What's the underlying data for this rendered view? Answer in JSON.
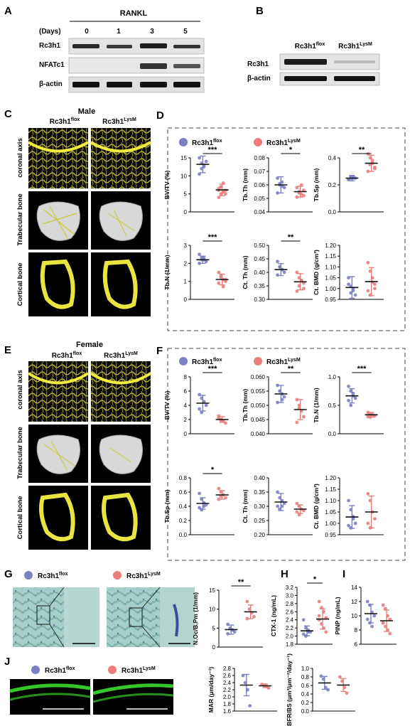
{
  "colors": {
    "flox": "#7b80c4",
    "lysm": "#e97d7d",
    "bone": "#e9e540",
    "micro": "#101010",
    "stain": "#8fbcb6",
    "green": "#3cdc2f"
  },
  "panelA": {
    "letter": "A",
    "treatment": "RANKL",
    "days_label": "(Days)",
    "days": [
      "0",
      "1",
      "3",
      "5"
    ],
    "rows": [
      "Rc3h1",
      "NFATc1",
      "β-actin"
    ]
  },
  "panelB": {
    "letter": "B",
    "lanes": [
      "Rc3h1",
      "Rc3h1"
    ],
    "lane_sup": [
      "flox",
      "LysM"
    ],
    "rows": [
      "Rc3h1",
      "β-actin"
    ]
  },
  "panelC": {
    "letter": "C",
    "sex": "Male",
    "cols": [
      "Rc3h1",
      "Rc3h1"
    ],
    "col_sup": [
      "flox",
      "LysM"
    ],
    "rows": [
      "coronal axis",
      "Trabecular bone",
      "Cortical bone"
    ]
  },
  "panelE": {
    "letter": "E",
    "sex": "Female",
    "cols": [
      "Rc3h1",
      "Rc3h1"
    ],
    "col_sup": [
      "flox",
      "LysM"
    ],
    "rows": [
      "coronal axis",
      "Trabecular bone",
      "Cortical bone"
    ]
  },
  "panelD": {
    "letter": "D",
    "legend": [
      "Rc3h1",
      "Rc3h1"
    ],
    "legend_sup": [
      "flox",
      "LysM"
    ]
  },
  "panelF": {
    "letter": "F",
    "legend": [
      "Rc3h1",
      "Rc3h1"
    ],
    "legend_sup": [
      "flox",
      "LysM"
    ]
  },
  "panelG": {
    "letter": "G",
    "legend": [
      "Rc3h1",
      "Rc3h1"
    ],
    "legend_sup": [
      "flox",
      "LysM"
    ]
  },
  "panelH": {
    "letter": "H"
  },
  "panelI": {
    "letter": "I"
  },
  "panelJ": {
    "letter": "J",
    "legend": [
      "Rc3h1",
      "Rc3h1"
    ],
    "legend_sup": [
      "flox",
      "LysM"
    ]
  },
  "chart_data": [
    {
      "id": "D1",
      "type": "scatter",
      "ylabel": "BV/TV (%)",
      "ylim": [
        0,
        15
      ],
      "yticks": [
        "0",
        "5",
        "10",
        "15"
      ],
      "groups": [
        "Rc3h1 flox",
        "Rc3h1 LysM"
      ],
      "mean": [
        13.2,
        6.1
      ],
      "sd": [
        2.3,
        1.6
      ],
      "points": [
        [
          10.5,
          12,
          13,
          14,
          15,
          13.5,
          12.5
        ],
        [
          4,
          5,
          5.5,
          6,
          6.5,
          7,
          8,
          5,
          6
        ]
      ],
      "significance": "***"
    },
    {
      "id": "D2",
      "type": "scatter",
      "ylabel": "Tb.Th (mm)",
      "ylim": [
        0.04,
        0.08
      ],
      "yticks": [
        "0.04",
        "0.05",
        "0.06",
        "0.07",
        "0.08"
      ],
      "groups": [
        "Rc3h1 flox",
        "Rc3h1 LysM"
      ],
      "mean": [
        0.06,
        0.055
      ],
      "sd": [
        0.006,
        0.004
      ],
      "points": [
        [
          0.065,
          0.061,
          0.059,
          0.058,
          0.054,
          0.06,
          0.062
        ],
        [
          0.058,
          0.055,
          0.053,
          0.056,
          0.051,
          0.054,
          0.06,
          0.052
        ]
      ],
      "significance": "*"
    },
    {
      "id": "D3",
      "type": "scatter",
      "ylabel": "Tb.Sp (mm)",
      "ylim": [
        0,
        0.4
      ],
      "yticks": [
        "0.0",
        "0.2",
        "0.4"
      ],
      "groups": [
        "Rc3h1 flox",
        "Rc3h1 LysM"
      ],
      "mean": [
        0.25,
        0.36
      ],
      "sd": [
        0.02,
        0.06
      ],
      "points": [
        [
          0.24,
          0.25,
          0.26,
          0.25,
          0.24,
          0.26,
          0.25
        ],
        [
          0.43,
          0.4,
          0.36,
          0.33,
          0.3,
          0.35,
          0.38,
          0.32
        ]
      ],
      "significance": "**"
    },
    {
      "id": "D4",
      "type": "scatter",
      "ylabel": "Tb.N (1/mm)",
      "ylim": [
        0,
        3
      ],
      "yticks": [
        "0",
        "1",
        "2",
        "3"
      ],
      "groups": [
        "Rc3h1 flox",
        "Rc3h1 LysM"
      ],
      "mean": [
        2.2,
        1.1
      ],
      "sd": [
        0.2,
        0.3
      ],
      "points": [
        [
          2.5,
          2.3,
          2.2,
          2.1,
          2,
          2.2,
          2.3
        ],
        [
          1.5,
          1.3,
          1.1,
          1,
          0.9,
          1.2,
          0.7,
          1.1
        ]
      ],
      "significance": "***"
    },
    {
      "id": "D5",
      "type": "scatter",
      "ylabel": "Ct. Th (mm)",
      "ylim": [
        0.3,
        0.5
      ],
      "yticks": [
        "0.30",
        "0.35",
        "0.40",
        "0.45",
        "0.50"
      ],
      "groups": [
        "Rc3h1 flox",
        "Rc3h1 LysM"
      ],
      "mean": [
        0.41,
        0.365
      ],
      "sd": [
        0.022,
        0.03
      ],
      "points": [
        [
          0.44,
          0.42,
          0.41,
          0.4,
          0.39,
          0.42,
          0.41
        ],
        [
          0.4,
          0.38,
          0.37,
          0.36,
          0.33,
          0.35,
          0.37,
          0.34
        ]
      ],
      "significance": "**"
    },
    {
      "id": "D6",
      "type": "scatter",
      "ylabel": "Ct. BMD (g/cm³)",
      "ylim": [
        0.95,
        1.2
      ],
      "yticks": [
        "0.95",
        "1.00",
        "1.05",
        "1.10",
        "1.15",
        "1.20"
      ],
      "groups": [
        "Rc3h1 flox",
        "Rc3h1 LysM"
      ],
      "mean": [
        1.005,
        1.032
      ],
      "sd": [
        0.05,
        0.065
      ],
      "points": [
        [
          1.05,
          1.01,
          0.99,
          0.97,
          1.02,
          0.98,
          1
        ],
        [
          1.12,
          1.08,
          1.05,
          1.02,
          0.99,
          0.97,
          1.03,
          1
        ]
      ],
      "significance": ""
    },
    {
      "id": "F1",
      "type": "scatter",
      "ylabel": "BV/TV (%)",
      "ylim": [
        0,
        8
      ],
      "yticks": [
        "0",
        "2",
        "4",
        "6",
        "8"
      ],
      "groups": [
        "Rc3h1 flox",
        "Rc3h1 LysM"
      ],
      "mean": [
        4.3,
        2
      ],
      "sd": [
        1.1,
        0.4
      ],
      "points": [
        [
          5.5,
          5,
          4.5,
          4,
          3.5,
          3,
          4.5
        ],
        [
          2.5,
          2,
          1.8,
          1.5,
          2.2,
          1.9
        ]
      ],
      "significance": "***"
    },
    {
      "id": "F2",
      "type": "scatter",
      "ylabel": "Tb.Th (mm)",
      "ylim": [
        0.04,
        0.06
      ],
      "yticks": [
        "0.040",
        "0.045",
        "0.050",
        "0.055",
        "0.060"
      ],
      "groups": [
        "Rc3h1 flox",
        "Rc3h1 LysM"
      ],
      "mean": [
        0.054,
        0.0485
      ],
      "sd": [
        0.003,
        0.0035
      ],
      "points": [
        [
          0.057,
          0.055,
          0.054,
          0.053,
          0.051,
          0.055,
          0.052
        ],
        [
          0.052,
          0.05,
          0.048,
          0.046,
          0.044,
          0.049
        ]
      ],
      "significance": "**"
    },
    {
      "id": "F3",
      "type": "scatter",
      "ylabel": "Tb.N (1/mm)",
      "ylim": [
        0,
        1.2
      ],
      "yticks": [
        "0.0",
        "0.5",
        "1.0"
      ],
      "groups": [
        "Rc3h1 flox",
        "Rc3h1 LysM"
      ],
      "mean": [
        0.8,
        0.4
      ],
      "sd": [
        0.15,
        0.05
      ],
      "points": [
        [
          1,
          0.9,
          0.85,
          0.75,
          0.7,
          0.6,
          0.8
        ],
        [
          0.45,
          0.42,
          0.4,
          0.38,
          0.36,
          0.35
        ]
      ],
      "significance": "***"
    },
    {
      "id": "F4",
      "type": "scatter",
      "ylabel": "Tb.Sp (mm)",
      "ylim": [
        0,
        0.8
      ],
      "yticks": [
        "0.0",
        "0.2",
        "0.4",
        "0.6",
        "0.8"
      ],
      "groups": [
        "Rc3h1 flox",
        "Rc3h1 LysM"
      ],
      "mean": [
        0.44,
        0.56
      ],
      "sd": [
        0.08,
        0.06
      ],
      "points": [
        [
          0.58,
          0.5,
          0.45,
          0.42,
          0.38,
          0.35,
          0.4
        ],
        [
          0.65,
          0.6,
          0.56,
          0.52,
          0.5,
          0.54
        ]
      ],
      "significance": "*"
    },
    {
      "id": "F5",
      "type": "scatter",
      "ylabel": "Ct. Th (mm)",
      "ylim": [
        0.2,
        0.4
      ],
      "yticks": [
        "0.20",
        "0.25",
        "0.30",
        "0.35",
        "0.40"
      ],
      "groups": [
        "Rc3h1 flox",
        "Rc3h1 LysM"
      ],
      "mean": [
        0.315,
        0.29
      ],
      "sd": [
        0.03,
        0.015
      ],
      "points": [
        [
          0.35,
          0.33,
          0.32,
          0.31,
          0.3,
          0.29,
          0.3
        ],
        [
          0.31,
          0.3,
          0.29,
          0.285,
          0.28,
          0.27
        ]
      ],
      "significance": ""
    },
    {
      "id": "F6",
      "type": "scatter",
      "ylabel": "Ct. BMD (g/cm³)",
      "ylim": [
        0.95,
        1.2
      ],
      "yticks": [
        "0.95",
        "1.00",
        "1.05",
        "1.10",
        "1.15",
        "1.20"
      ],
      "groups": [
        "Rc3h1 flox",
        "Rc3h1 LysM"
      ],
      "mean": [
        1.028,
        1.05
      ],
      "sd": [
        0.05,
        0.07
      ],
      "points": [
        [
          1.1,
          1.06,
          1.03,
          1,
          0.99,
          0.98,
          1.02
        ],
        [
          1.13,
          1.1,
          1.05,
          1.02,
          1,
          0.98
        ]
      ],
      "significance": ""
    },
    {
      "id": "G1",
      "type": "scatter",
      "ylabel": "N.Oc/B.Pm (1/mm)",
      "ylim": [
        0,
        15
      ],
      "yticks": [
        "0",
        "5",
        "10",
        "15"
      ],
      "groups": [
        "Rc3h1 flox",
        "Rc3h1 LysM"
      ],
      "mean": [
        4.6,
        9.3
      ],
      "sd": [
        1.2,
        1.8
      ],
      "points": [
        [
          6,
          5,
          4.5,
          4,
          3.5
        ],
        [
          12,
          10,
          9,
          8,
          7.5
        ]
      ],
      "significance": "**"
    },
    {
      "id": "H1",
      "type": "scatter",
      "ylabel": "CTX-1 (ng/mL)",
      "ylim": [
        1.8,
        3.2
      ],
      "yticks": [
        "1.8",
        "2.0",
        "2.2",
        "2.4",
        "2.6",
        "2.8",
        "3.0",
        "3.2"
      ],
      "groups": [
        "Rc3h1 flox",
        "Rc3h1 LysM"
      ],
      "mean": [
        2.13,
        2.42
      ],
      "sd": [
        0.12,
        0.25
      ],
      "points": [
        [
          2.4,
          2.2,
          2.15,
          2.1,
          2.05,
          2,
          2.1
        ],
        [
          2.85,
          2.7,
          2.6,
          2.45,
          2.4,
          2.3,
          2.2,
          2.1,
          2.5
        ]
      ],
      "significance": "*"
    },
    {
      "id": "I1",
      "type": "scatter",
      "ylabel": "PINP (ng/mL)",
      "ylim": [
        6,
        14
      ],
      "yticks": [
        "6",
        "8",
        "10",
        "12",
        "14"
      ],
      "groups": [
        "Rc3h1 flox",
        "Rc3h1 LysM"
      ],
      "mean": [
        10.3,
        9.3
      ],
      "sd": [
        1.3,
        1.5
      ],
      "points": [
        [
          12,
          11.5,
          10.5,
          10,
          9.5,
          9,
          8.5
        ],
        [
          11.5,
          11,
          10,
          9.5,
          9,
          8.5,
          8,
          7.5,
          9
        ]
      ],
      "significance": ""
    },
    {
      "id": "J1",
      "type": "scatter",
      "ylabel": "MAR (μm/day⁻¹)",
      "ylim": [
        1.6,
        2.8
      ],
      "yticks": [
        "1.6",
        "1.8",
        "2.0",
        "2.2",
        "2.4",
        "2.6",
        "2.8"
      ],
      "groups": [
        "Rc3h1 flox",
        "Rc3h1 LysM"
      ],
      "mean": [
        2.33,
        2.31
      ],
      "sd": [
        0.3,
        0.05
      ],
      "points": [
        [
          2.6,
          2.4,
          2.2,
          1.75
        ],
        [
          2.35,
          2.32,
          2.3,
          2.25
        ]
      ],
      "significance": ""
    },
    {
      "id": "J2",
      "type": "scatter",
      "ylabel": "BFR/BS (μm³/μm⁻²/day⁻¹)",
      "ylim": [
        0,
        1
      ],
      "yticks": [
        "0.0",
        "0.2",
        "0.4",
        "0.6",
        "0.8",
        "1.0"
      ],
      "groups": [
        "Rc3h1 flox",
        "Rc3h1 LysM"
      ],
      "mean": [
        0.66,
        0.61
      ],
      "sd": [
        0.15,
        0.15
      ],
      "points": [
        [
          0.82,
          0.75,
          0.55,
          0.5
        ],
        [
          0.8,
          0.7,
          0.55,
          0.42
        ]
      ],
      "significance": ""
    }
  ]
}
